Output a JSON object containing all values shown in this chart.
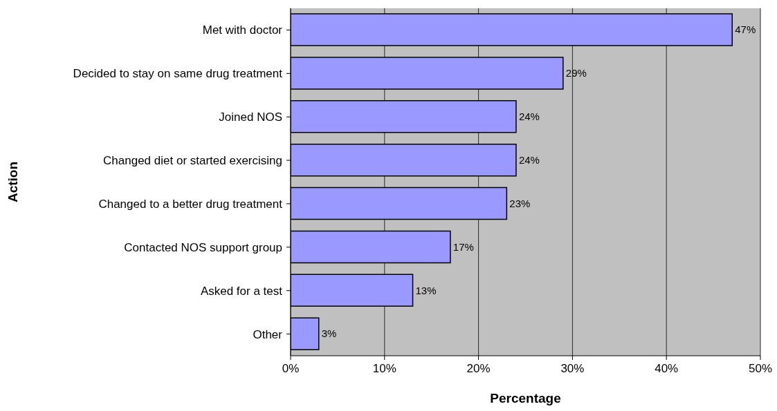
{
  "chart_data": {
    "type": "bar",
    "orientation": "horizontal",
    "xlabel": "Percentage",
    "ylabel": "Action",
    "categories": [
      "Met with doctor",
      "Decided to stay on same drug treatment",
      "Joined NOS",
      "Changed diet or started exercising",
      "Changed to a better drug treatment",
      "Contacted NOS support group",
      "Asked for a test",
      "Other"
    ],
    "values": [
      47,
      29,
      24,
      24,
      23,
      17,
      13,
      3
    ],
    "value_labels": [
      "47%",
      "29%",
      "24%",
      "24%",
      "23%",
      "17%",
      "13%",
      "3%"
    ],
    "color": "#9999ff",
    "xlim": [
      0,
      50
    ],
    "xticks": [
      {
        "value": 0,
        "label": "0%"
      },
      {
        "value": 10,
        "label": "10%"
      },
      {
        "value": 20,
        "label": "20%"
      },
      {
        "value": 30,
        "label": "30%"
      },
      {
        "value": 40,
        "label": "40%"
      },
      {
        "value": 50,
        "label": "50%"
      }
    ],
    "grid": "x"
  }
}
